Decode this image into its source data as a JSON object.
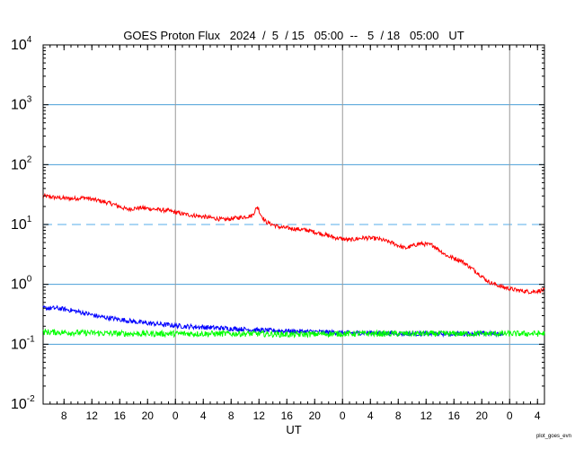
{
  "chart_data": {
    "type": "line",
    "title": "GOES Proton Flux   2024  /  5  / 15   05:00  --   5  / 18   05:00   UT",
    "xlabel": "UT",
    "y_scale": "log",
    "ylim": [
      0.01,
      10000
    ],
    "y_ticks": [
      {
        "base": "10",
        "exp": "4",
        "value": 10000
      },
      {
        "base": "10",
        "exp": "3",
        "value": 1000
      },
      {
        "base": "10",
        "exp": "2",
        "value": 100
      },
      {
        "base": "10",
        "exp": "1",
        "value": 10
      },
      {
        "base": "10",
        "exp": "0",
        "value": 1
      },
      {
        "base": "10",
        "exp": "-1",
        "value": 0.1
      },
      {
        "base": "10",
        "exp": "-2",
        "value": 0.01
      }
    ],
    "x_range_hours": [
      0,
      72
    ],
    "x_ticks": [
      {
        "hour": 3,
        "label": "8"
      },
      {
        "hour": 7,
        "label": "12"
      },
      {
        "hour": 11,
        "label": "16"
      },
      {
        "hour": 15,
        "label": "20"
      },
      {
        "hour": 19,
        "label": "0"
      },
      {
        "hour": 23,
        "label": "4"
      },
      {
        "hour": 27,
        "label": "8"
      },
      {
        "hour": 31,
        "label": "12"
      },
      {
        "hour": 35,
        "label": "16"
      },
      {
        "hour": 39,
        "label": "20"
      },
      {
        "hour": 43,
        "label": "0"
      },
      {
        "hour": 47,
        "label": "4"
      },
      {
        "hour": 51,
        "label": "8"
      },
      {
        "hour": 55,
        "label": "12"
      },
      {
        "hour": 59,
        "label": "16"
      },
      {
        "hour": 63,
        "label": "20"
      },
      {
        "hour": 67,
        "label": "0"
      },
      {
        "hour": 71,
        "label": "4"
      }
    ],
    "day_boundaries_hours": [
      19,
      43,
      67
    ],
    "h_gridlines": [
      1000,
      100,
      1,
      0.1
    ],
    "threshold_line": {
      "value": 10,
      "style": "dashed"
    },
    "grid": true,
    "series": [
      {
        "color": "#ff0000",
        "x": [
          0,
          2,
          4,
          6,
          8,
          10,
          12,
          14,
          16,
          18,
          20,
          22,
          24,
          26,
          28,
          30,
          30.8,
          31.2,
          32,
          34,
          36,
          38,
          40,
          42,
          44,
          46,
          48,
          50,
          52,
          54,
          56,
          58,
          60,
          62,
          64,
          66,
          68,
          70,
          72
        ],
        "y": [
          30,
          28,
          27,
          28,
          25,
          22,
          18,
          19,
          18,
          17,
          15,
          14,
          13,
          12,
          13,
          14,
          20,
          15,
          11,
          9,
          8.5,
          8,
          7,
          6,
          5.5,
          6,
          5.8,
          5,
          4,
          4.8,
          4.5,
          3,
          2.5,
          1.7,
          1.1,
          0.9,
          0.8,
          0.75,
          0.8
        ]
      },
      {
        "color": "#0000ff",
        "x": [
          0,
          2,
          4,
          6,
          8,
          10,
          12,
          14,
          16,
          18,
          20,
          24,
          28,
          32,
          36,
          40,
          44,
          48,
          52,
          56,
          60,
          64,
          66
        ],
        "y": [
          0.4,
          0.4,
          0.37,
          0.33,
          0.29,
          0.27,
          0.25,
          0.23,
          0.22,
          0.21,
          0.2,
          0.19,
          0.18,
          0.17,
          0.165,
          0.16,
          0.155,
          0.155,
          0.15,
          0.15,
          0.15,
          0.15,
          0.15
        ]
      },
      {
        "color": "#00ff00",
        "x": [
          0,
          6,
          12,
          18,
          24,
          30,
          36,
          42,
          48,
          54,
          60,
          66,
          72
        ],
        "y": [
          0.16,
          0.155,
          0.15,
          0.15,
          0.15,
          0.15,
          0.145,
          0.15,
          0.15,
          0.15,
          0.15,
          0.15,
          0.15
        ]
      }
    ],
    "footnote": "plot_goes_evn"
  }
}
